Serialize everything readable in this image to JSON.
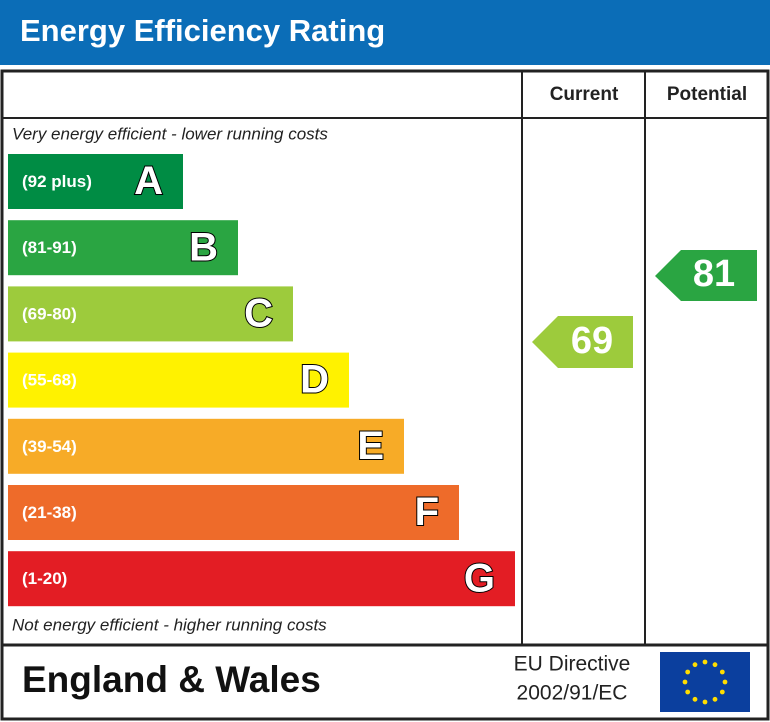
{
  "header": {
    "title": "Energy Efficiency Rating"
  },
  "columns": {
    "current": "Current",
    "potential": "Potential"
  },
  "top_note": "Very energy efficient - lower running costs",
  "bands": [
    {
      "range": "(92 plus)",
      "letter": "A"
    },
    {
      "range": "(81-91)",
      "letter": "B"
    },
    {
      "range": "(69-80)",
      "letter": "C"
    },
    {
      "range": "(55-68)",
      "letter": "D"
    },
    {
      "range": "(39-54)",
      "letter": "E"
    },
    {
      "range": "(21-38)",
      "letter": "F"
    },
    {
      "range": "(1-20)",
      "letter": "G"
    }
  ],
  "bottom_note": "Not energy efficient - higher running costs",
  "current": {
    "value": 69
  },
  "potential": {
    "value": 81
  },
  "footer": {
    "region": "England & Wales",
    "directive": [
      "EU Directive",
      "2002/91/EC"
    ]
  }
}
